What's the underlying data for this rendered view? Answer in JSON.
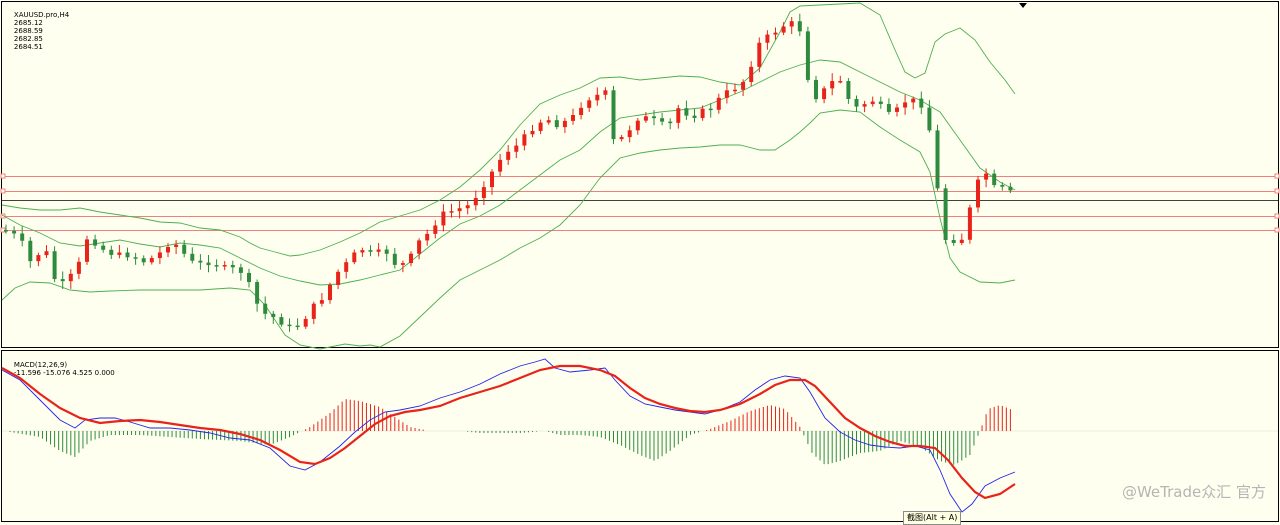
{
  "price_header": {
    "symbol": "XAUUSD.pro,H4",
    "open": "2685.12",
    "high": "2688.59",
    "low": "2682.85",
    "close": "2684.51"
  },
  "indicator_header": {
    "name": "MACD(12,26,9)",
    "values": "-11.596 -15.076 4.525 0.000"
  },
  "tooltip": "截图(Alt + A)",
  "watermark": "@WeTrade众汇 官方",
  "colors": {
    "background": "#fffff0",
    "bull_candle": "#e8231a",
    "bear_candle": "#2e8b3e",
    "bollinger": "#4caf50",
    "level_line": "#f08080",
    "current_price_line": "#000000",
    "macd_line": "#2323e8",
    "signal_line": "#e8231a",
    "histogram_positive": "#e8231a",
    "histogram_negative": "#2e8b3e"
  },
  "chart_data": {
    "type": "candlestick",
    "timeframe": "H4",
    "candle_count": 125,
    "price_panel": {
      "overlays": [
        "Bollinger Bands (upper, middle, lower)"
      ],
      "horizontal_lines": 4,
      "current_price_line": true
    },
    "macd_panel": {
      "params": [
        12,
        26,
        9
      ],
      "macd": -11.596,
      "signal": -15.076,
      "histogram": 4.525,
      "zero": 0.0
    }
  }
}
